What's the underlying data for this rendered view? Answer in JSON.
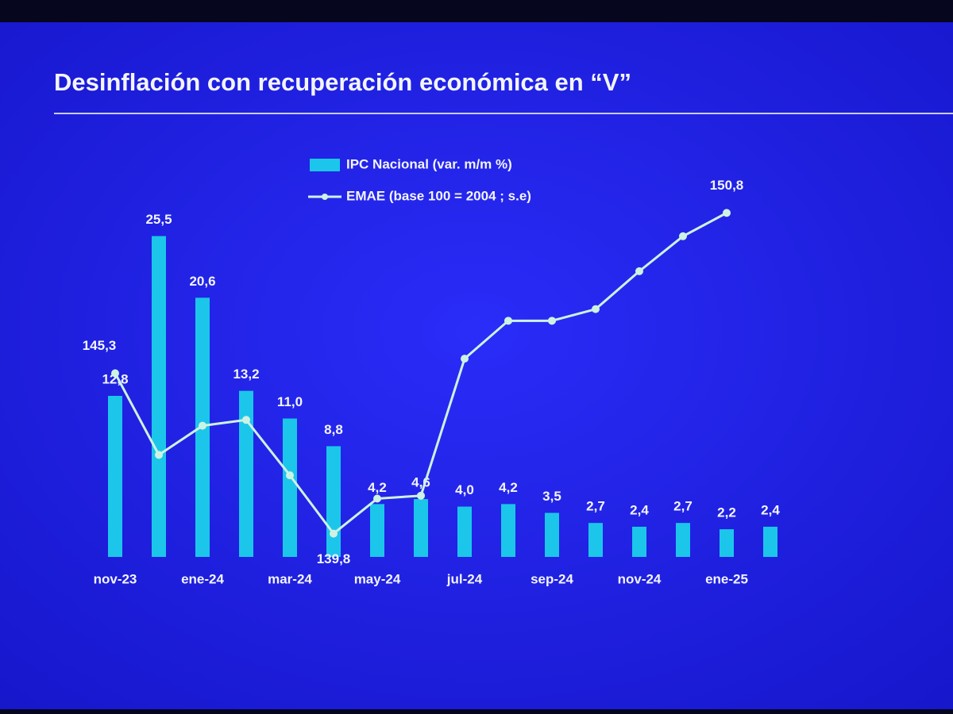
{
  "chart_data": {
    "type": "bar_line",
    "title": "Desinflación con recuperación económica en “V”",
    "categories": [
      "nov-23",
      null,
      "ene-24",
      null,
      "mar-24",
      null,
      "may-24",
      null,
      "jul-24",
      null,
      "sep-24",
      null,
      "nov-24",
      null,
      "ene-25",
      null
    ],
    "series": [
      {
        "name": "IPC Nacional (var. m/m %)",
        "type": "bar",
        "axis": "y",
        "color": "#1cc6ea",
        "values": [
          12.8,
          25.5,
          20.6,
          13.2,
          11.0,
          8.8,
          4.2,
          4.6,
          4.0,
          4.2,
          3.5,
          2.7,
          2.4,
          2.7,
          2.2,
          2.4
        ],
        "value_labels": [
          "12,8",
          "25,5",
          "20,6",
          "13,2",
          "11,0",
          "8,8",
          "4,2",
          "4,6",
          "4,0",
          "4,2",
          "3,5",
          "2,7",
          "2,4",
          "2,7",
          "2,2",
          "2,4"
        ]
      },
      {
        "name": "EMAE (base 100 = 2004 ; s.e)",
        "type": "line",
        "axis": "y2",
        "color": "#cdf2e4",
        "values": [
          145.3,
          142.5,
          143.5,
          143.7,
          141.8,
          139.8,
          141.0,
          141.1,
          145.8,
          147.1,
          147.1,
          147.5,
          148.8,
          150.0,
          150.8,
          null
        ],
        "value_labels": [
          "145,3",
          null,
          null,
          null,
          null,
          "139,8",
          null,
          null,
          null,
          null,
          null,
          null,
          null,
          null,
          "150,8",
          null
        ]
      }
    ],
    "ylim": [
      0,
      28.5
    ],
    "y2lim": [
      139,
      151.3
    ]
  }
}
